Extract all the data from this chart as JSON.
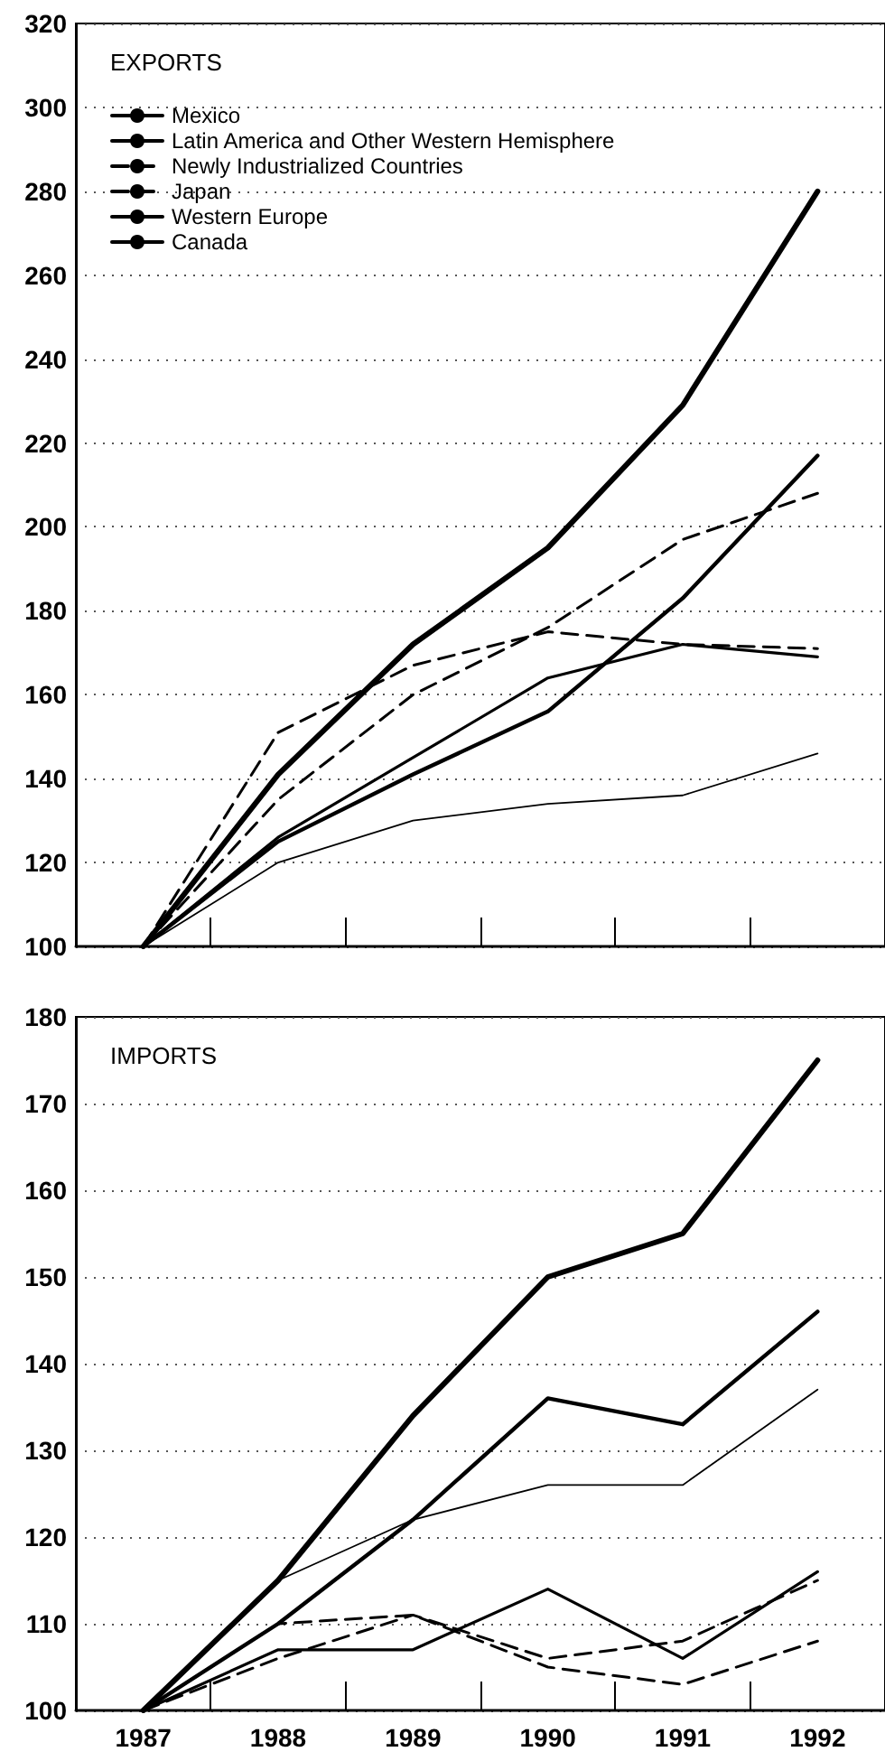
{
  "chart_data": [
    {
      "type": "line",
      "title": "EXPORTS",
      "categories": [
        "1987",
        "1988",
        "1989",
        "1990",
        "1991",
        "1992"
      ],
      "ylim": [
        100,
        320
      ],
      "yticks": [
        100,
        120,
        140,
        160,
        180,
        200,
        220,
        240,
        260,
        280,
        300,
        320
      ],
      "grid": "y",
      "legend": "top left",
      "marker": "none",
      "tick_labels": "y",
      "series": [
        {
          "name": "Mexico",
          "color": "#000000",
          "values": [
            100,
            141,
            172,
            195,
            229,
            280
          ]
        },
        {
          "name": "Latin America and Other Western Hemisphere",
          "color": "#000000",
          "values": [
            100,
            125,
            141,
            156,
            183,
            217
          ]
        },
        {
          "name": "Newly Industrialized Countries",
          "color": "#000000",
          "line_style": "dashed",
          "values": [
            100,
            135,
            160,
            176,
            197,
            208
          ]
        },
        {
          "name": "Japan",
          "color": "#000000",
          "line_style": "dashed",
          "values": [
            100,
            151,
            167,
            175,
            172,
            171
          ]
        },
        {
          "name": "Western Europe",
          "color": "#000000",
          "values": [
            100,
            126,
            145,
            164,
            172,
            169
          ]
        },
        {
          "name": "Canada",
          "color": "#000000",
          "values": [
            100,
            120,
            130,
            134,
            136,
            146
          ]
        }
      ]
    },
    {
      "type": "line",
      "title": "IMPORTS",
      "categories": [
        "1987",
        "1988",
        "1989",
        "1990",
        "1991",
        "1992"
      ],
      "ylim": [
        100,
        180
      ],
      "yticks": [
        100,
        110,
        120,
        130,
        140,
        150,
        160,
        170,
        180
      ],
      "grid": "y",
      "legend": false,
      "marker": "none",
      "series": [
        {
          "color": "#000000",
          "values": [
            100,
            115,
            134,
            150,
            155,
            175
          ]
        },
        {
          "color": "#000000",
          "values": [
            100,
            110,
            122,
            136,
            133,
            146
          ]
        },
        {
          "color": "#000000",
          "line_style": "dashed",
          "values": [
            100,
            110,
            111,
            105,
            103,
            108
          ]
        },
        {
          "color": "#000000",
          "line_style": "dashed",
          "values": [
            100,
            106,
            111,
            106,
            108,
            115
          ]
        },
        {
          "color": "#000000",
          "values": [
            100,
            107,
            107,
            114,
            106,
            116
          ]
        },
        {
          "color": "#000000",
          "values": [
            100,
            115,
            122,
            126,
            126,
            137
          ]
        }
      ]
    }
  ]
}
